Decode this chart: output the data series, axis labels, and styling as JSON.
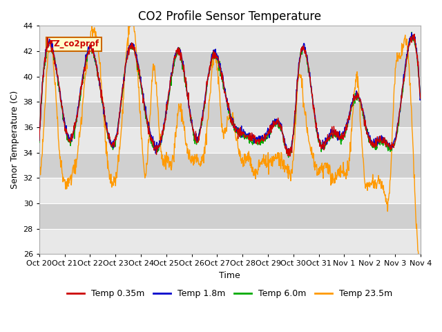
{
  "title": "CO2 Profile Sensor Temperature",
  "ylabel": "Senor Temperature (C)",
  "xlabel": "Time",
  "ylim": [
    26,
    44
  ],
  "yticks": [
    26,
    28,
    30,
    32,
    34,
    36,
    38,
    40,
    42,
    44
  ],
  "legend_label": "TZ_co2prof",
  "series_labels": [
    "Temp 0.35m",
    "Temp 1.8m",
    "Temp 6.0m",
    "Temp 23.5m"
  ],
  "series_colors": [
    "#cc0000",
    "#0000cc",
    "#00aa00",
    "#ff9900"
  ],
  "background_color": "#ffffff",
  "plot_bg_light": "#e8e8e8",
  "plot_bg_dark": "#d0d0d0",
  "grid_color": "#ffffff",
  "title_fontsize": 12,
  "axis_fontsize": 9,
  "tick_fontsize": 8,
  "xtick_labels": [
    "Oct 20",
    "Oct 21",
    "Oct 22",
    "Oct 23",
    "Oct 24",
    "Oct 25",
    "Oct 26",
    "Oct 27",
    "Oct 28",
    "Oct 29",
    "Oct 30",
    "Oct 31",
    "Nov 1",
    "Nov 2",
    "Nov 3",
    "Nov 4"
  ],
  "n_points": 1000
}
